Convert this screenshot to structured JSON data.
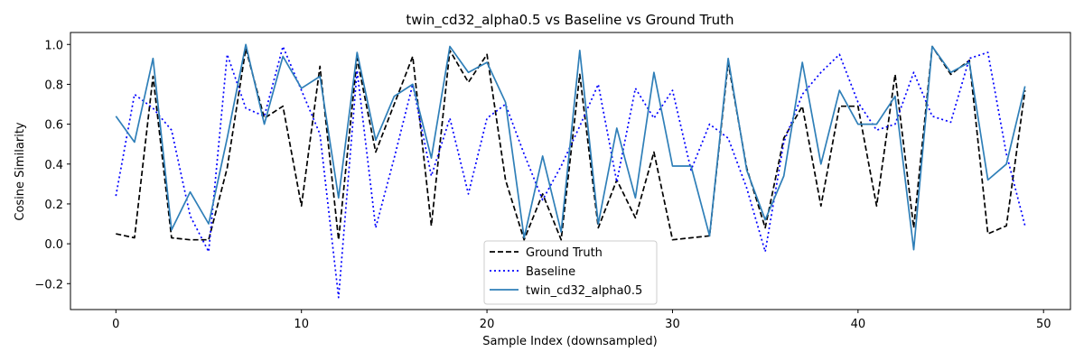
{
  "chart_data": {
    "type": "line",
    "title": "twin_cd32_alpha0.5 vs Baseline vs Ground Truth",
    "xlabel": "Sample Index (downsampled)",
    "ylabel": "Cosine Similarity",
    "xlim": [
      -2.45,
      51.45
    ],
    "ylim": [
      -0.33,
      1.06
    ],
    "xticks": [
      0,
      10,
      20,
      30,
      40,
      50
    ],
    "xtick_labels": [
      "0",
      "10",
      "20",
      "30",
      "40",
      "50"
    ],
    "yticks": [
      -0.2,
      0.0,
      0.2,
      0.4,
      0.6,
      0.8,
      1.0
    ],
    "ytick_labels": [
      "−0.2",
      "0.0",
      "0.2",
      "0.4",
      "0.6",
      "0.8",
      "1.0"
    ],
    "grid": false,
    "legend_position": "bottom-center",
    "x": [
      0,
      1,
      2,
      3,
      4,
      5,
      6,
      7,
      8,
      9,
      10,
      11,
      12,
      13,
      14,
      15,
      16,
      17,
      18,
      19,
      20,
      21,
      22,
      23,
      24,
      25,
      26,
      27,
      28,
      29,
      30,
      31,
      32,
      33,
      34,
      35,
      36,
      37,
      38,
      39,
      40,
      41,
      42,
      43,
      44,
      45,
      46,
      47,
      48,
      49
    ],
    "series": [
      {
        "name": "Ground Truth",
        "color": "#000000",
        "style": "dashed",
        "values": [
          0.05,
          0.03,
          0.84,
          0.03,
          0.02,
          0.02,
          0.38,
          0.98,
          0.63,
          0.69,
          0.19,
          0.89,
          0.02,
          0.93,
          0.46,
          0.7,
          0.94,
          0.09,
          0.97,
          0.81,
          0.95,
          0.32,
          0.02,
          0.25,
          0.02,
          0.85,
          0.08,
          0.32,
          0.13,
          0.46,
          0.02,
          0.03,
          0.04,
          0.91,
          0.38,
          0.08,
          0.53,
          0.69,
          0.19,
          0.69,
          0.69,
          0.19,
          0.85,
          0.08,
          0.99,
          0.85,
          0.92,
          0.05,
          0.09,
          0.77
        ]
      },
      {
        "name": "Baseline",
        "color": "#0000ff",
        "style": "dotted",
        "values": [
          0.24,
          0.75,
          0.68,
          0.57,
          0.14,
          -0.04,
          0.95,
          0.68,
          0.64,
          0.99,
          0.77,
          0.55,
          -0.27,
          0.87,
          0.08,
          0.43,
          0.8,
          0.34,
          0.63,
          0.25,
          0.63,
          0.7,
          0.45,
          0.22,
          0.39,
          0.59,
          0.8,
          0.31,
          0.78,
          0.63,
          0.77,
          0.37,
          0.6,
          0.53,
          0.28,
          -0.04,
          0.51,
          0.75,
          0.86,
          0.95,
          0.71,
          0.57,
          0.6,
          0.86,
          0.64,
          0.61,
          0.93,
          0.96,
          0.45,
          0.09
        ]
      },
      {
        "name": "twin_cd32_alpha0.5",
        "color": "#2f7fb8",
        "style": "solid",
        "values": [
          0.64,
          0.51,
          0.93,
          0.07,
          0.26,
          0.1,
          0.53,
          1.0,
          0.6,
          0.94,
          0.78,
          0.84,
          0.23,
          0.96,
          0.52,
          0.74,
          0.8,
          0.43,
          0.99,
          0.86,
          0.91,
          0.71,
          0.03,
          0.44,
          0.06,
          0.97,
          0.1,
          0.58,
          0.23,
          0.86,
          0.39,
          0.39,
          0.04,
          0.93,
          0.37,
          0.12,
          0.34,
          0.91,
          0.4,
          0.77,
          0.6,
          0.6,
          0.74,
          -0.03,
          0.99,
          0.86,
          0.91,
          0.32,
          0.4,
          0.79
        ]
      }
    ]
  }
}
